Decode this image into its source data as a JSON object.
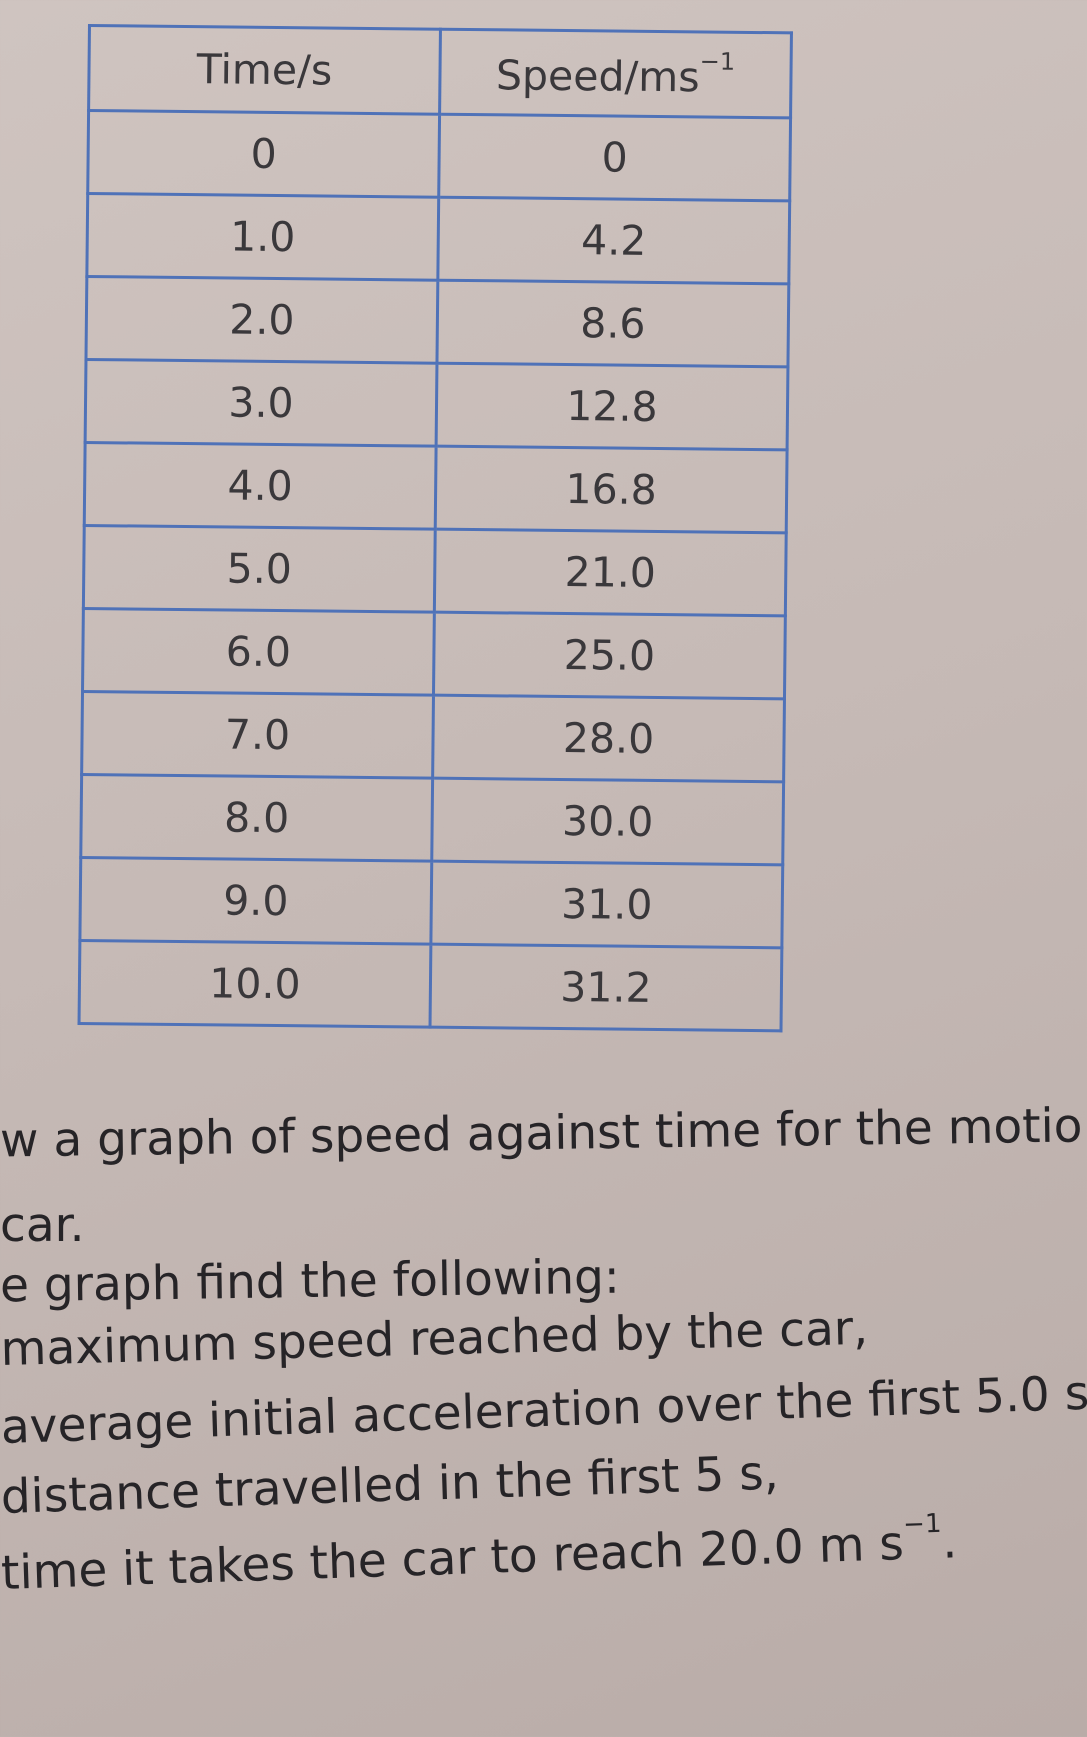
{
  "table": {
    "headers": [
      "Time/s",
      "Speed/ms",
      "−1"
    ],
    "rows": [
      [
        "0",
        "0"
      ],
      [
        "1.0",
        "4.2"
      ],
      [
        "2.0",
        "8.6"
      ],
      [
        "3.0",
        "12.8"
      ],
      [
        "4.0",
        "16.8"
      ],
      [
        "5.0",
        "21.0"
      ],
      [
        "6.0",
        "25.0"
      ],
      [
        "7.0",
        "28.0"
      ],
      [
        "8.0",
        "30.0"
      ],
      [
        "9.0",
        "31.0"
      ],
      [
        "10.0",
        "31.2"
      ]
    ]
  },
  "text": {
    "line1": "w a graph of speed against time for the motio",
    "line2": "car.",
    "line3": "e graph find the following:",
    "line4": "maximum speed reached by the car,",
    "line5": "average initial acceleration over the first 5.0 s,",
    "line6": "distance travelled in the first 5 s,",
    "line7a": "time it takes the car to reach 20.0 m s",
    "line7sup": "−1",
    "line7b": "."
  },
  "colors": {
    "table_border": "#4f72b8",
    "page": "#c9bdb8",
    "text": "#2b2a2c"
  }
}
